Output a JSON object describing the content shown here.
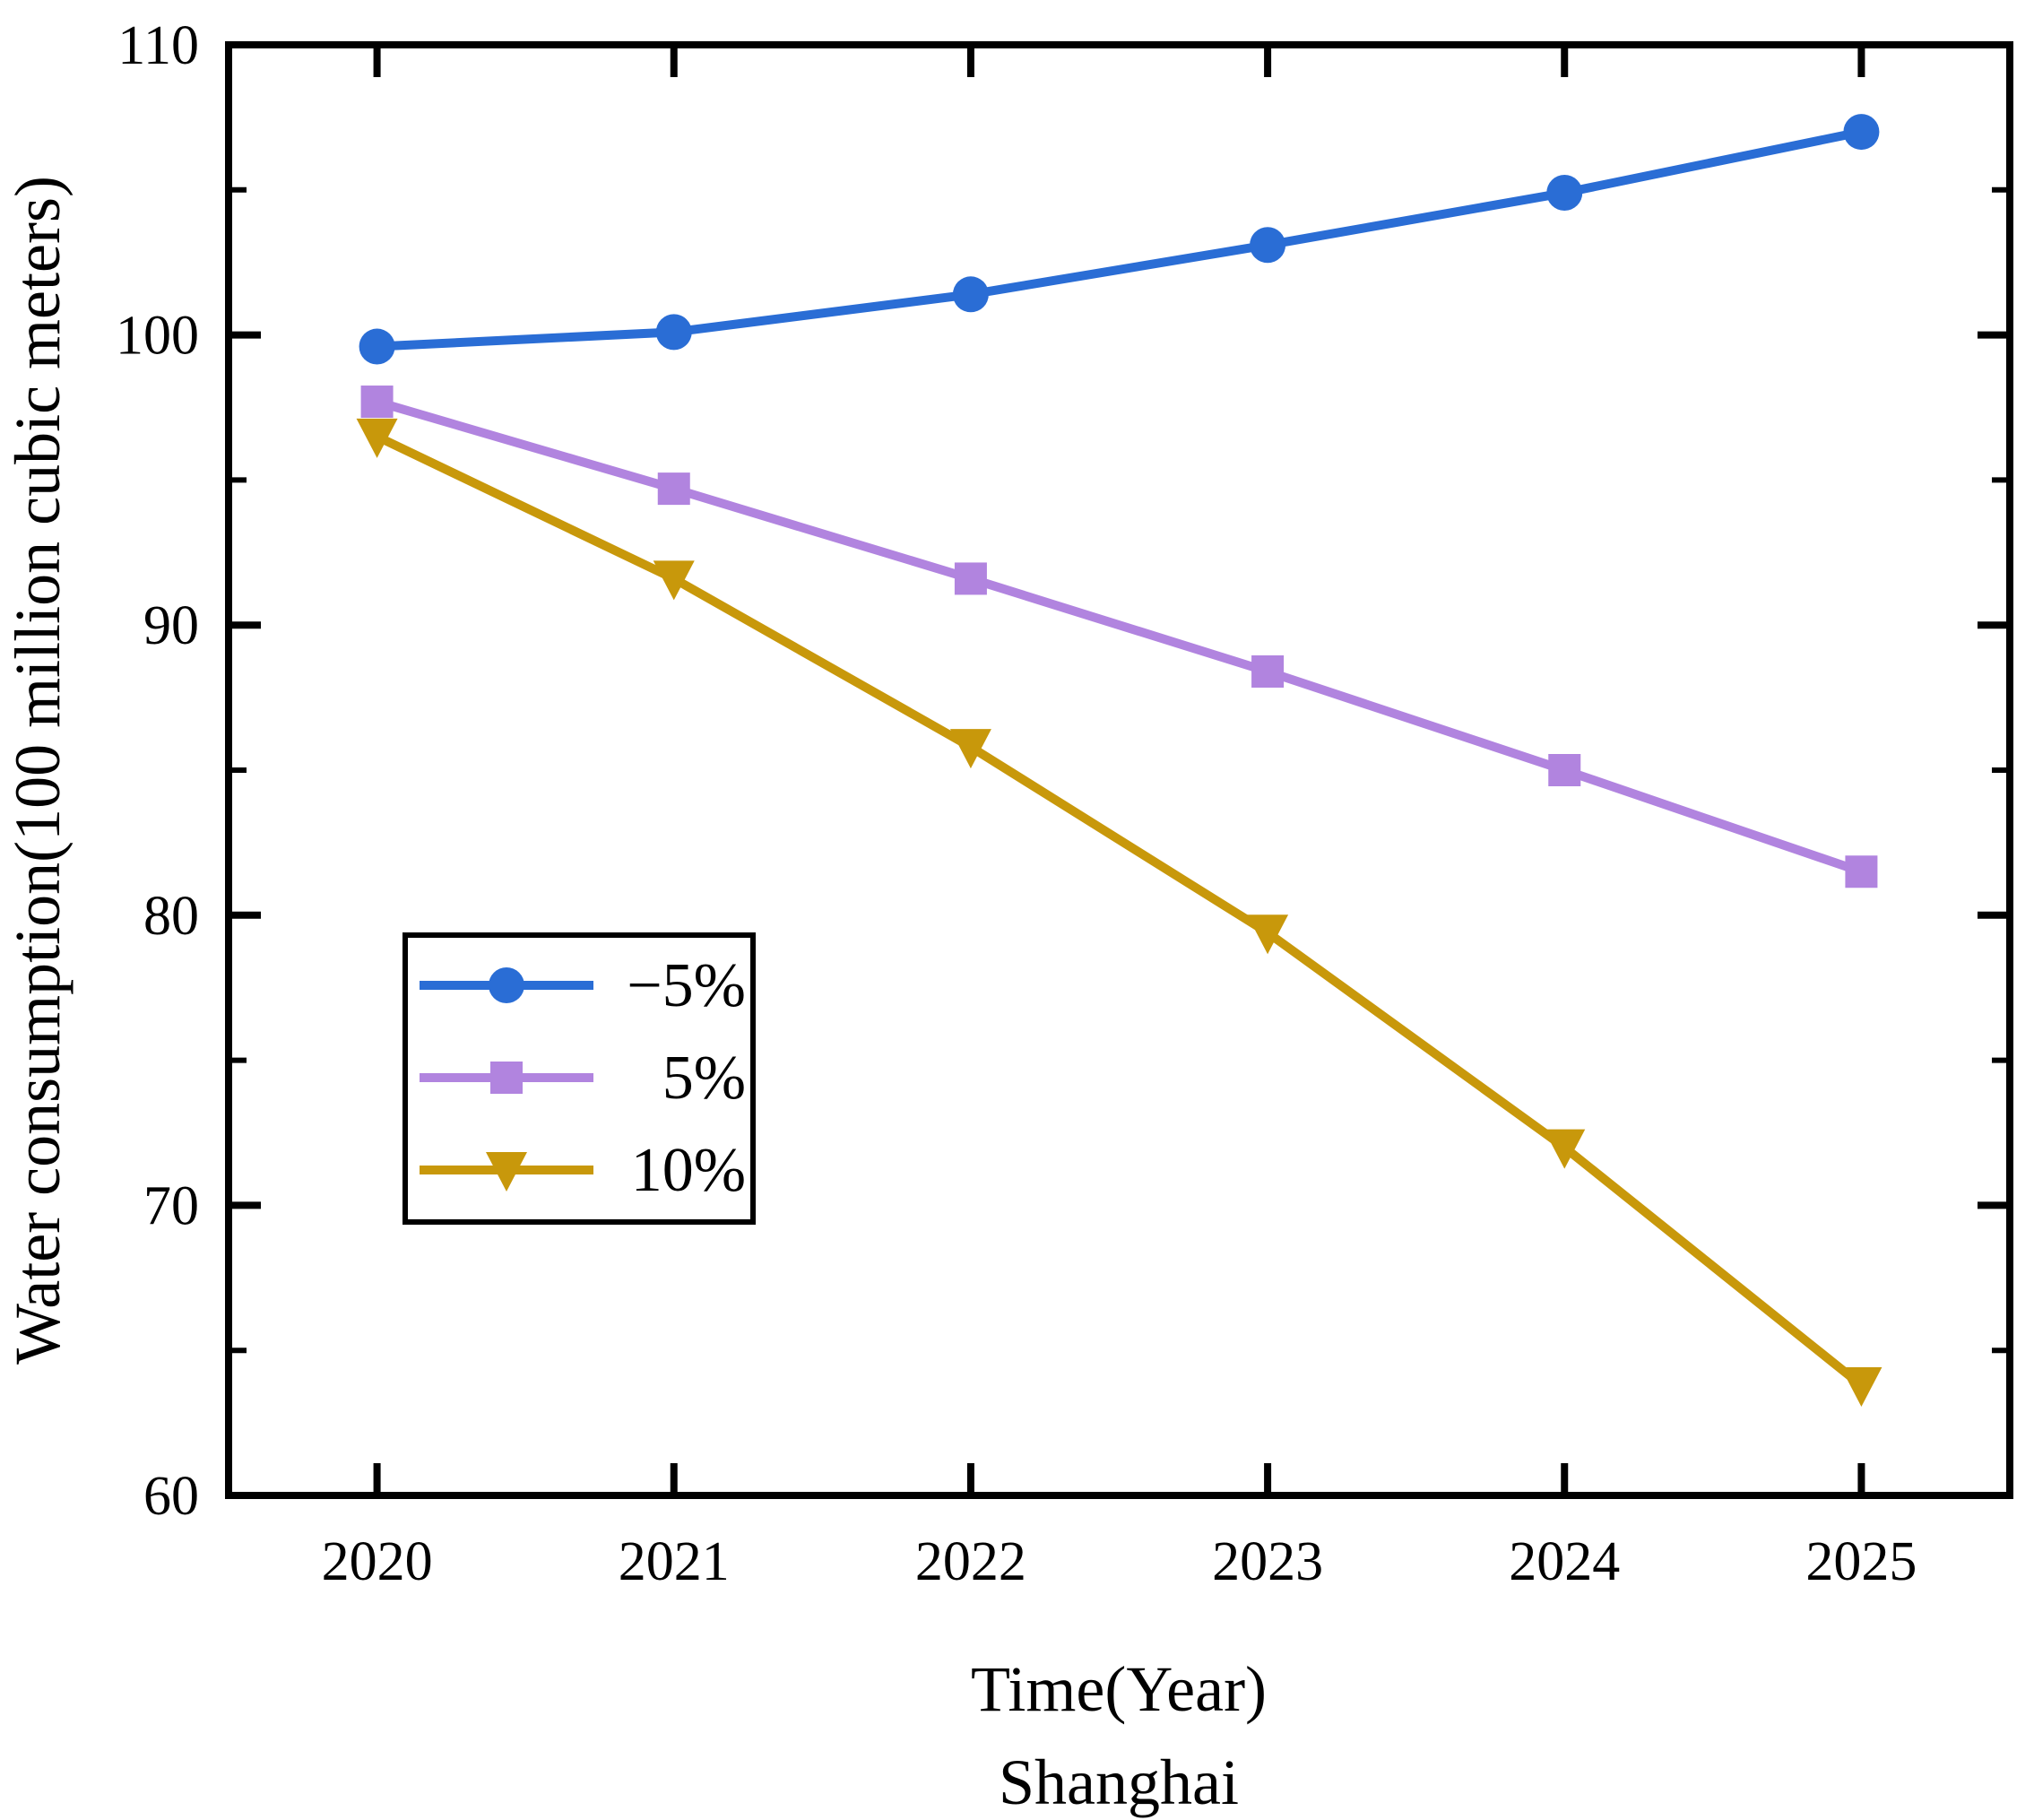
{
  "chart_data": {
    "type": "line",
    "title": "",
    "xlabel": "Time(Year)",
    "xlabel_sub": "Shanghai",
    "ylabel": "Water consumption(100 million cubic meters)",
    "x": [
      2020,
      2021,
      2022,
      2023,
      2024,
      2025
    ],
    "x_tick_labels": [
      "2020",
      "2021",
      "2022",
      "2023",
      "2024",
      "2025"
    ],
    "xlim": [
      2019.5,
      2025.5
    ],
    "ylim": [
      60,
      110
    ],
    "y_major_ticks": [
      60,
      70,
      80,
      90,
      100,
      110
    ],
    "y_tick_labels": [
      "60",
      "70",
      "80",
      "90",
      "100",
      "110"
    ],
    "y_minor_ticks": [
      65,
      75,
      85,
      95,
      105
    ],
    "grid": false,
    "legend_position": "inside-lower-left",
    "axis_color": "#000000",
    "background_color": "#ffffff",
    "series": [
      {
        "name": "−5%",
        "marker": "circle",
        "color": "#2A6DD5",
        "values": [
          99.6,
          100.1,
          101.4,
          103.1,
          104.9,
          107.0
        ]
      },
      {
        "name": "5%",
        "marker": "square",
        "color": "#B184DF",
        "values": [
          97.7,
          94.7,
          91.6,
          88.4,
          85.0,
          81.5
        ]
      },
      {
        "name": "10%",
        "marker": "triangle-down",
        "color": "#C8980B",
        "values": [
          96.5,
          91.6,
          85.8,
          79.4,
          72.0,
          63.8
        ]
      }
    ]
  }
}
